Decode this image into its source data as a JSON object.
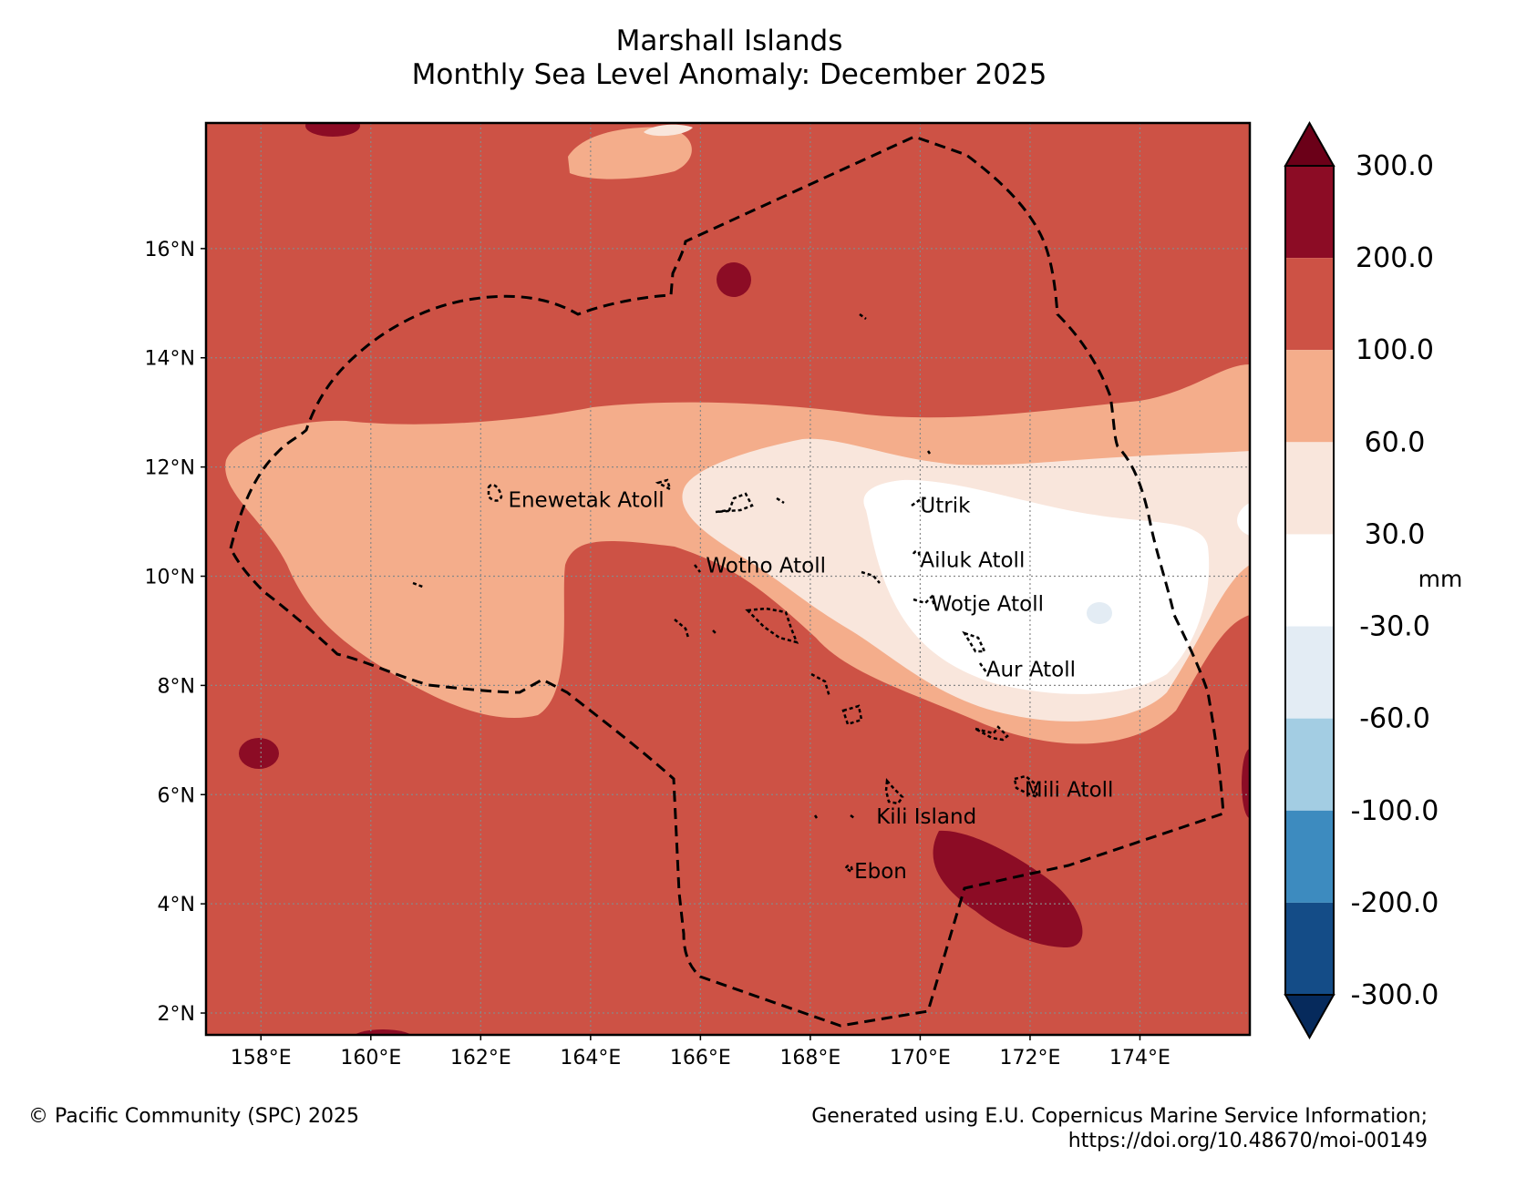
{
  "title": {
    "line1": "Marshall Islands",
    "line2": "Monthly Sea Level Anomaly: December 2025"
  },
  "map": {
    "lon_range": [
      157,
      176
    ],
    "lat_range": [
      1.6,
      18.3
    ],
    "lon_ticks": [
      "158°E",
      "160°E",
      "162°E",
      "164°E",
      "166°E",
      "168°E",
      "170°E",
      "172°E",
      "174°E"
    ],
    "lat_ticks": [
      "2°N",
      "4°N",
      "6°N",
      "8°N",
      "10°N",
      "12°N",
      "14°N",
      "16°N"
    ],
    "labels": [
      {
        "name": "Enewetak Atoll",
        "lon": 162.5,
        "lat": 11.4
      },
      {
        "name": "Wotho Atoll",
        "lon": 166.1,
        "lat": 10.2
      },
      {
        "name": "Utrik",
        "lon": 170.0,
        "lat": 11.3
      },
      {
        "name": "Ailuk Atoll",
        "lon": 170.0,
        "lat": 10.3
      },
      {
        "name": "Wotje Atoll",
        "lon": 170.2,
        "lat": 9.5
      },
      {
        "name": "Aur Atoll",
        "lon": 171.2,
        "lat": 8.3
      },
      {
        "name": "Mili Atoll",
        "lon": 171.9,
        "lat": 6.1
      },
      {
        "name": "Kili Island",
        "lon": 169.2,
        "lat": 5.6
      },
      {
        "name": "Ebon",
        "lon": 168.8,
        "lat": 4.6
      }
    ]
  },
  "colorbar": {
    "unit": "mm",
    "levels": [
      "300.0",
      "200.0",
      "100.0",
      "60.0",
      "30.0",
      "-30.0",
      "-60.0",
      "-100.0",
      "-200.0",
      "-300.0"
    ],
    "colors": [
      "#6b0018",
      "#8c0c25",
      "#cd5245",
      "#f4ad8b",
      "#f9e6dc",
      "#ffffff",
      "#e3ecf4",
      "#a3cde3",
      "#3d8bbf",
      "#144c87",
      "#062a5c"
    ]
  },
  "footer": {
    "left": "© Pacific Community (SPC) 2025",
    "right_line1": "Generated using E.U. Copernicus Marine Service Information;",
    "right_line2": "https://doi.org/10.48670/moi-00149"
  }
}
